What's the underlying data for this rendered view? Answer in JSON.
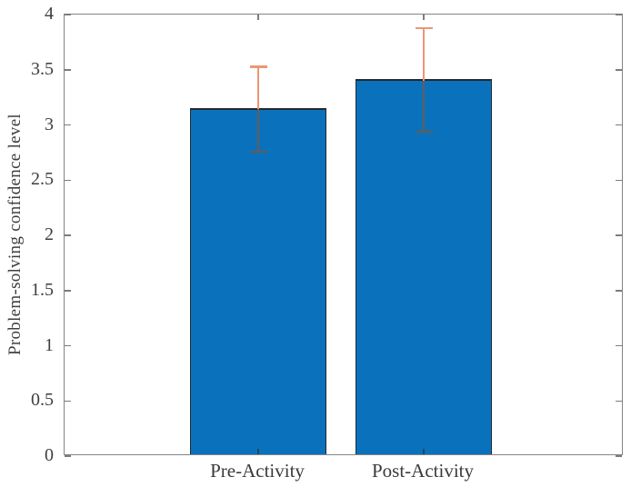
{
  "chart_data": {
    "type": "bar",
    "title": "",
    "categories": [
      "Pre-Activity",
      "Post-Activity"
    ],
    "values": [
      3.14,
      3.4
    ],
    "error_low": [
      2.76,
      2.94
    ],
    "error_high": [
      3.53,
      3.88
    ],
    "series": [
      {
        "name": "Problem-solving confidence",
        "values": [
          3.14,
          3.4
        ]
      }
    ],
    "xlabel": "",
    "ylabel": "Problem-solving confidence level",
    "ylim": [
      0,
      4
    ],
    "yticks": [
      0,
      0.5,
      1,
      1.5,
      2,
      2.5,
      3,
      3.5,
      4
    ],
    "ytick_labels": [
      "0",
      "0.5",
      "1",
      "1.5",
      "2",
      "2.5",
      "3",
      "3.5",
      "4"
    ],
    "grid": false,
    "legend": "none",
    "colors": {
      "bar_fill": "#0a72bd",
      "bar_edge": "#24292e",
      "error_bar": "#d95319",
      "error_bar_rendered_above_bar": "#ec9673",
      "error_bar_rendered_on_bar": "#6b5a50",
      "axis_frame": "#848484",
      "tick_mark": "#7c7c7c",
      "tick_label": "#3e3e3e"
    }
  }
}
